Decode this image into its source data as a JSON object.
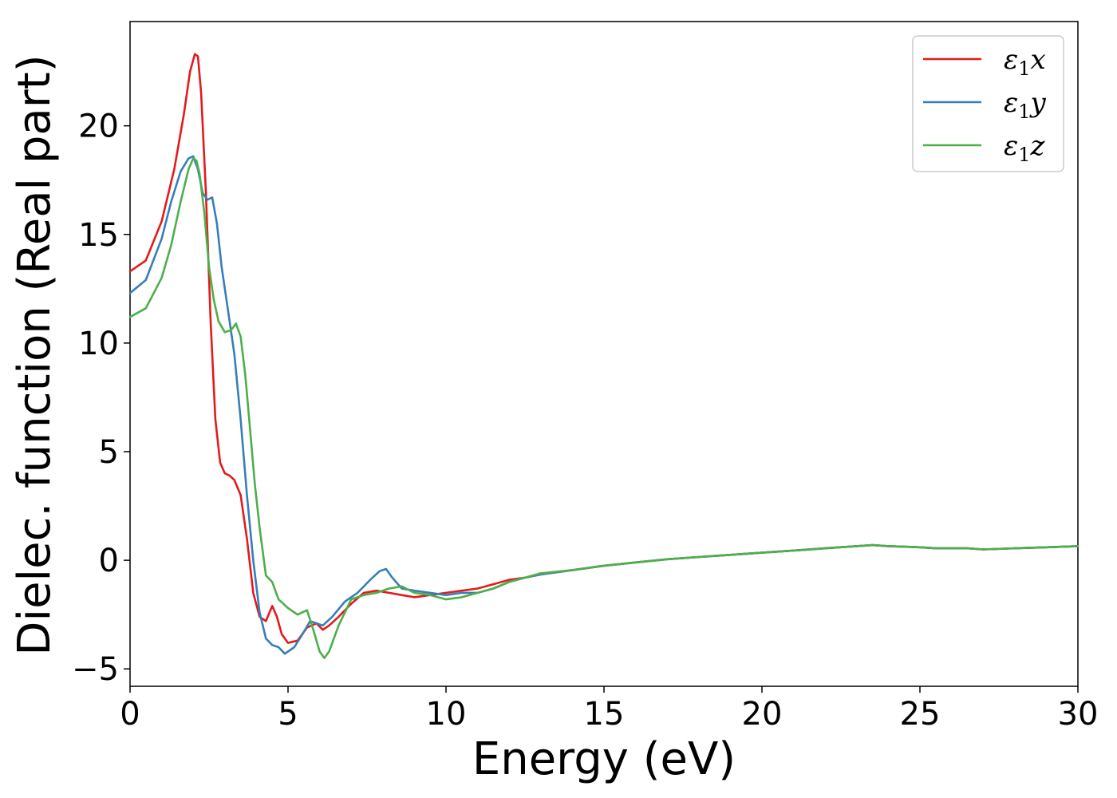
{
  "chart_data": {
    "type": "line",
    "xlabel": "Energy (eV)",
    "ylabel": "Dielec. function (Real part)",
    "xlim": [
      0,
      30
    ],
    "ylim": [
      -5.8,
      24.8
    ],
    "x_ticks": [
      0,
      5,
      10,
      15,
      20,
      25,
      30
    ],
    "y_ticks": [
      -5,
      0,
      5,
      10,
      15,
      20
    ],
    "grid": false,
    "legend": "top-right",
    "series": [
      {
        "name": "ε₁x",
        "legend_base": "ε",
        "legend_sub": "1",
        "legend_suffix": "x",
        "color": "#e41a1c",
        "x": [
          0,
          0.5,
          1.0,
          1.4,
          1.7,
          1.9,
          2.05,
          2.15,
          2.25,
          2.4,
          2.55,
          2.7,
          2.85,
          3.0,
          3.15,
          3.3,
          3.5,
          3.7,
          3.9,
          4.1,
          4.3,
          4.5,
          4.65,
          4.8,
          5.0,
          5.3,
          5.6,
          5.9,
          6.1,
          6.3,
          6.6,
          7.0,
          7.4,
          7.8,
          8.2,
          8.6,
          9.0,
          9.5,
          10.0,
          10.5,
          11.0,
          11.5,
          12.0,
          12.5,
          13.0,
          14.0,
          15.0,
          16.0,
          17.0,
          18.0,
          19.0,
          20.0,
          21.0,
          22.0,
          23.0,
          23.5,
          24.0,
          25.0,
          25.5,
          26.5,
          27.0,
          28.0,
          29.0,
          30.0
        ],
        "y": [
          13.3,
          13.8,
          15.6,
          18.0,
          20.5,
          22.5,
          23.3,
          23.2,
          21.5,
          17.0,
          11.0,
          6.5,
          4.5,
          4.0,
          3.9,
          3.7,
          3.0,
          1.0,
          -1.5,
          -2.6,
          -2.8,
          -2.1,
          -2.6,
          -3.4,
          -3.8,
          -3.7,
          -3.1,
          -2.9,
          -3.2,
          -3.0,
          -2.6,
          -2.0,
          -1.5,
          -1.4,
          -1.5,
          -1.6,
          -1.7,
          -1.6,
          -1.5,
          -1.4,
          -1.3,
          -1.1,
          -0.9,
          -0.8,
          -0.65,
          -0.45,
          -0.25,
          -0.1,
          0.05,
          0.15,
          0.25,
          0.35,
          0.45,
          0.55,
          0.65,
          0.7,
          0.65,
          0.6,
          0.55,
          0.55,
          0.5,
          0.55,
          0.6,
          0.65
        ]
      },
      {
        "name": "ε₁y",
        "legend_base": "ε",
        "legend_sub": "1",
        "legend_suffix": "y",
        "color": "#377eb8",
        "x": [
          0,
          0.5,
          1.0,
          1.3,
          1.6,
          1.85,
          2.0,
          2.15,
          2.3,
          2.45,
          2.6,
          2.75,
          2.9,
          3.1,
          3.3,
          3.5,
          3.7,
          3.9,
          4.1,
          4.3,
          4.5,
          4.7,
          4.9,
          5.2,
          5.5,
          5.7,
          5.9,
          6.1,
          6.4,
          6.8,
          7.2,
          7.6,
          7.9,
          8.1,
          8.3,
          8.6,
          9.0,
          9.5,
          10.0,
          10.5,
          11.0,
          11.5,
          12.0,
          12.5,
          13.0,
          14.0,
          15.0,
          16.0,
          17.0,
          18.0,
          19.0,
          20.0,
          21.0,
          22.0,
          23.0,
          23.5,
          24.0,
          25.0,
          25.5,
          26.5,
          27.0,
          28.0,
          29.0,
          30.0
        ],
        "y": [
          12.3,
          12.9,
          14.8,
          16.5,
          17.9,
          18.5,
          18.6,
          18.0,
          16.9,
          16.6,
          16.7,
          15.5,
          13.5,
          11.5,
          9.5,
          6.5,
          3.0,
          0.0,
          -2.4,
          -3.6,
          -3.9,
          -4.0,
          -4.3,
          -4.0,
          -3.3,
          -2.8,
          -2.9,
          -3.0,
          -2.6,
          -1.9,
          -1.5,
          -0.9,
          -0.5,
          -0.4,
          -0.8,
          -1.3,
          -1.4,
          -1.5,
          -1.6,
          -1.5,
          -1.5,
          -1.3,
          -1.0,
          -0.8,
          -0.65,
          -0.45,
          -0.25,
          -0.1,
          0.05,
          0.15,
          0.25,
          0.35,
          0.45,
          0.55,
          0.65,
          0.7,
          0.65,
          0.6,
          0.55,
          0.55,
          0.5,
          0.55,
          0.6,
          0.65
        ]
      },
      {
        "name": "ε₁z",
        "legend_base": "ε",
        "legend_sub": "1",
        "legend_suffix": "z",
        "color": "#4daf4a",
        "x": [
          0,
          0.5,
          1.0,
          1.3,
          1.6,
          1.85,
          2.0,
          2.1,
          2.2,
          2.35,
          2.5,
          2.65,
          2.8,
          3.0,
          3.2,
          3.35,
          3.5,
          3.65,
          3.8,
          3.95,
          4.1,
          4.3,
          4.5,
          4.7,
          5.0,
          5.3,
          5.6,
          5.8,
          6.0,
          6.15,
          6.3,
          6.6,
          7.0,
          7.4,
          7.8,
          8.2,
          8.6,
          9.0,
          9.5,
          10.0,
          10.5,
          11.0,
          11.5,
          12.0,
          12.5,
          13.0,
          14.0,
          15.0,
          16.0,
          17.0,
          18.0,
          19.0,
          20.0,
          21.0,
          22.0,
          23.0,
          23.5,
          24.0,
          25.0,
          25.5,
          26.5,
          27.0,
          28.0,
          29.0,
          30.0
        ],
        "y": [
          11.2,
          11.6,
          13.0,
          14.5,
          16.5,
          18.0,
          18.5,
          18.4,
          17.8,
          16.0,
          13.5,
          12.0,
          11.0,
          10.5,
          10.6,
          10.9,
          10.3,
          8.5,
          6.0,
          3.5,
          1.5,
          -0.7,
          -1.0,
          -1.8,
          -2.2,
          -2.5,
          -2.3,
          -3.2,
          -4.2,
          -4.5,
          -4.2,
          -3.0,
          -1.8,
          -1.6,
          -1.5,
          -1.3,
          -1.2,
          -1.5,
          -1.6,
          -1.8,
          -1.7,
          -1.5,
          -1.3,
          -1.0,
          -0.8,
          -0.6,
          -0.45,
          -0.25,
          -0.1,
          0.05,
          0.15,
          0.25,
          0.35,
          0.45,
          0.55,
          0.65,
          0.7,
          0.65,
          0.6,
          0.55,
          0.55,
          0.5,
          0.55,
          0.6,
          0.65
        ]
      }
    ]
  }
}
